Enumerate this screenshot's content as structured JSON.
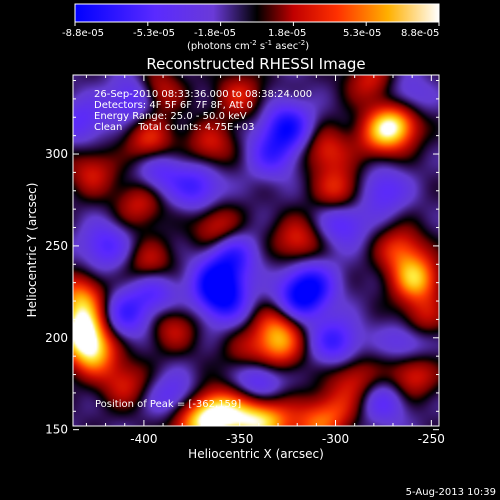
{
  "chart_data": {
    "type": "heatmap",
    "title": "Reconstructed RHESSI Image",
    "xlabel": "Heliocentric X (arcsec)",
    "ylabel": "Heliocentric Y (arcsec)",
    "xlim": [
      -437,
      -246
    ],
    "ylim": [
      152,
      343
    ],
    "x_ticks": [
      -400,
      -350,
      -300,
      -250
    ],
    "y_ticks": [
      150,
      200,
      250,
      300
    ],
    "colorbar": {
      "ticks": [
        "-8.8e-05",
        "-5.3e-05",
        "-1.8e-05",
        "1.8e-05",
        "5.3e-05",
        "8.8e-05"
      ],
      "min": -8.8e-05,
      "max": 8.8e-05,
      "unit_line1": "(photons cm",
      "unit_exp1": "-2",
      "unit_line2": " s",
      "unit_exp2": "-1",
      "unit_line3": " asec",
      "unit_exp3": "-2",
      "unit_close": ")"
    },
    "annotations": [
      "26-Sep-2010 08:33:36.000 to 08:38:24.000",
      "Detectors: 4F 5F 6F 7F 8F, Att 0",
      "Energy Range: 25.0 - 50.0 keV",
      "Clean     Total counts: 4.75E+03"
    ],
    "peak_label": "Position of Peak = [-362,159]",
    "peak": [
      -362,
      159
    ],
    "hotspots": [
      {
        "x": -432,
        "y": 205,
        "v": 1.0
      },
      {
        "x": -427,
        "y": 192,
        "v": 0.85
      },
      {
        "x": -433,
        "y": 222,
        "v": 0.7
      },
      {
        "x": -362,
        "y": 159,
        "v": 1.0
      },
      {
        "x": -346,
        "y": 155,
        "v": 0.75
      },
      {
        "x": -375,
        "y": 152,
        "v": 0.65
      },
      {
        "x": -268,
        "y": 317,
        "v": 0.9
      },
      {
        "x": -277,
        "y": 310,
        "v": 0.55
      },
      {
        "x": -258,
        "y": 232,
        "v": 0.85
      },
      {
        "x": -266,
        "y": 248,
        "v": 0.55
      },
      {
        "x": -260,
        "y": 180,
        "v": 0.55
      },
      {
        "x": -331,
        "y": 205,
        "v": 0.6
      },
      {
        "x": -329,
        "y": 193,
        "v": 0.5
      },
      {
        "x": -333,
        "y": 155,
        "v": 0.6
      },
      {
        "x": -312,
        "y": 152,
        "v": 0.5
      },
      {
        "x": -300,
        "y": 160,
        "v": 0.45
      },
      {
        "x": -290,
        "y": 178,
        "v": 0.45
      },
      {
        "x": -397,
        "y": 307,
        "v": 0.55
      },
      {
        "x": -393,
        "y": 334,
        "v": 0.5
      },
      {
        "x": -365,
        "y": 305,
        "v": 0.45
      },
      {
        "x": -350,
        "y": 332,
        "v": 0.45
      },
      {
        "x": -427,
        "y": 290,
        "v": 0.45
      },
      {
        "x": -305,
        "y": 302,
        "v": 0.5
      },
      {
        "x": -298,
        "y": 280,
        "v": 0.55
      },
      {
        "x": -320,
        "y": 253,
        "v": 0.5
      },
      {
        "x": -362,
        "y": 260,
        "v": 0.5
      },
      {
        "x": -402,
        "y": 273,
        "v": 0.45
      },
      {
        "x": -397,
        "y": 240,
        "v": 0.45
      },
      {
        "x": -410,
        "y": 175,
        "v": 0.45
      },
      {
        "x": -385,
        "y": 205,
        "v": 0.4
      },
      {
        "x": -346,
        "y": 190,
        "v": 0.35
      },
      {
        "x": -282,
        "y": 340,
        "v": 0.45
      },
      {
        "x": -255,
        "y": 210,
        "v": 0.45
      },
      {
        "x": -410,
        "y": 212,
        "v": -0.55
      },
      {
        "x": -395,
        "y": 225,
        "v": -0.5
      },
      {
        "x": -362,
        "y": 230,
        "v": -0.8
      },
      {
        "x": -354,
        "y": 245,
        "v": -0.6
      },
      {
        "x": -358,
        "y": 220,
        "v": -0.6
      },
      {
        "x": -318,
        "y": 222,
        "v": -0.75
      },
      {
        "x": -312,
        "y": 230,
        "v": -0.5
      },
      {
        "x": -325,
        "y": 315,
        "v": -0.75
      },
      {
        "x": -333,
        "y": 300,
        "v": -0.5
      },
      {
        "x": -405,
        "y": 330,
        "v": -0.55
      },
      {
        "x": -372,
        "y": 282,
        "v": -0.55
      },
      {
        "x": -392,
        "y": 290,
        "v": -0.45
      },
      {
        "x": -296,
        "y": 263,
        "v": -0.5
      },
      {
        "x": -275,
        "y": 280,
        "v": -0.45
      },
      {
        "x": -300,
        "y": 198,
        "v": -0.6
      },
      {
        "x": -262,
        "y": 198,
        "v": -0.45
      },
      {
        "x": -340,
        "y": 178,
        "v": -0.55
      },
      {
        "x": -420,
        "y": 250,
        "v": -0.5
      },
      {
        "x": -432,
        "y": 318,
        "v": -0.4
      },
      {
        "x": -275,
        "y": 165,
        "v": -0.4
      },
      {
        "x": -385,
        "y": 168,
        "v": -0.4
      },
      {
        "x": -263,
        "y": 330,
        "v": -0.4
      }
    ]
  },
  "footer": {
    "timestamp": "5-Aug-2013 10:39"
  }
}
